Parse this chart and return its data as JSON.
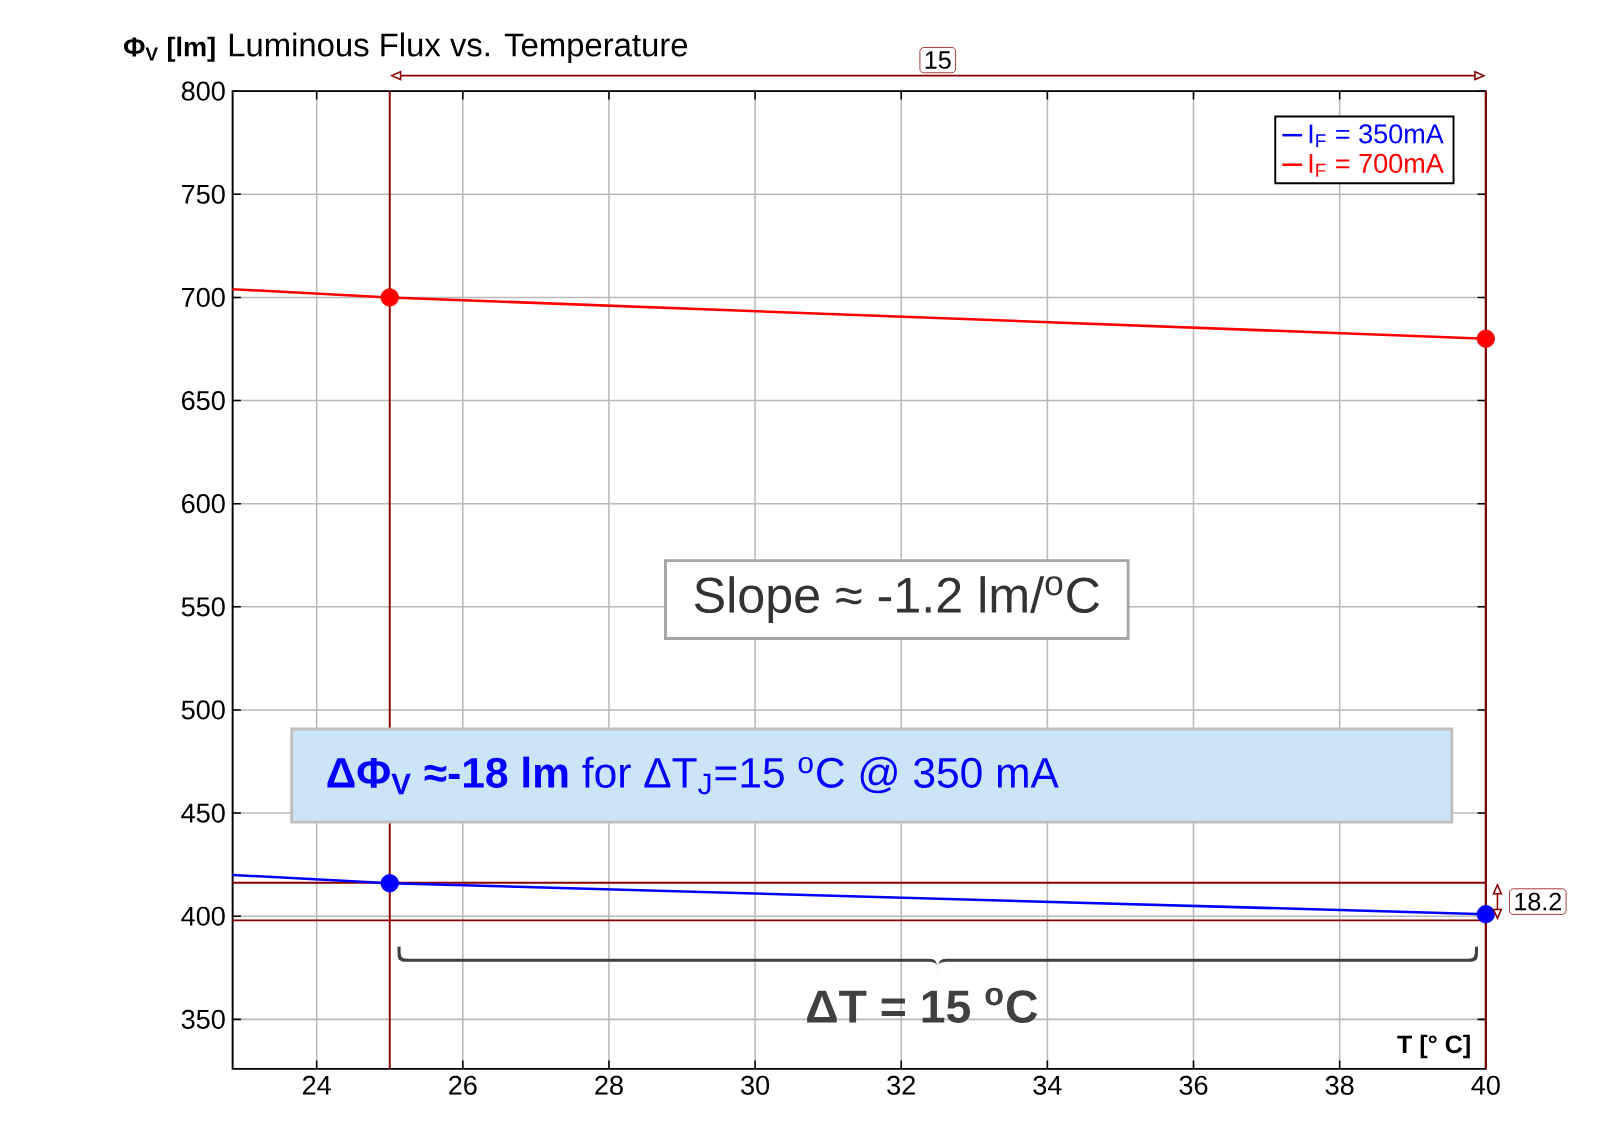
{
  "chart_data": {
    "type": "line",
    "title": "Luminous Flux vs. Temperature",
    "ylabel": "Φ$_{V}$ [lm]",
    "xlabel": "T [° C]",
    "xlim": [
      22.85,
      40
    ],
    "ylim": [
      326,
      800
    ],
    "xticks": [
      24,
      26,
      28,
      30,
      32,
      34,
      36,
      38,
      40
    ],
    "yticks": [
      350,
      400,
      450,
      500,
      550,
      600,
      650,
      700,
      750,
      800
    ],
    "grid": true,
    "legend": "top right",
    "line_style": "solid",
    "series": [
      {
        "name": "I$_{F}$ = 350mA",
        "color": "#0000ff",
        "x": [
          22.85,
          25,
          40
        ],
        "values": [
          420,
          416,
          401
        ]
      },
      {
        "name": "I$_{F}$ = 700mA",
        "color": "#ff0000",
        "x": [
          22.85,
          25,
          40
        ],
        "values": [
          704,
          700,
          680
        ]
      },
      {
        "type": "scatter",
        "marker": "circle",
        "color": "#0000ff",
        "x": [
          25,
          40
        ],
        "values": [
          416,
          401
        ]
      },
      {
        "type": "scatter",
        "marker": "circle",
        "color": "#ff0000",
        "x": [
          25,
          40
        ],
        "values": [
          700,
          680
        ]
      }
    ],
    "ref_lines": [
      {
        "axis": "x",
        "value": 25,
        "color": "#8b0000"
      },
      {
        "axis": "x",
        "value": 40,
        "color": "#8b0000"
      },
      {
        "axis": "y",
        "value": 416.2,
        "color": "#8b0000"
      },
      {
        "axis": "y",
        "value": 398,
        "color": "#8b0000"
      }
    ],
    "annotations": [
      "15",
      "18.2",
      "Slope ≈ -1.2 lm/$^{o}$C",
      "**ΔΦ$_{V}$ ≈-18 lm** for ΔT$_{J}$=15 $^{o}$C @ 350 mA",
      "ΔT = 15 $^{o}$C"
    ]
  }
}
